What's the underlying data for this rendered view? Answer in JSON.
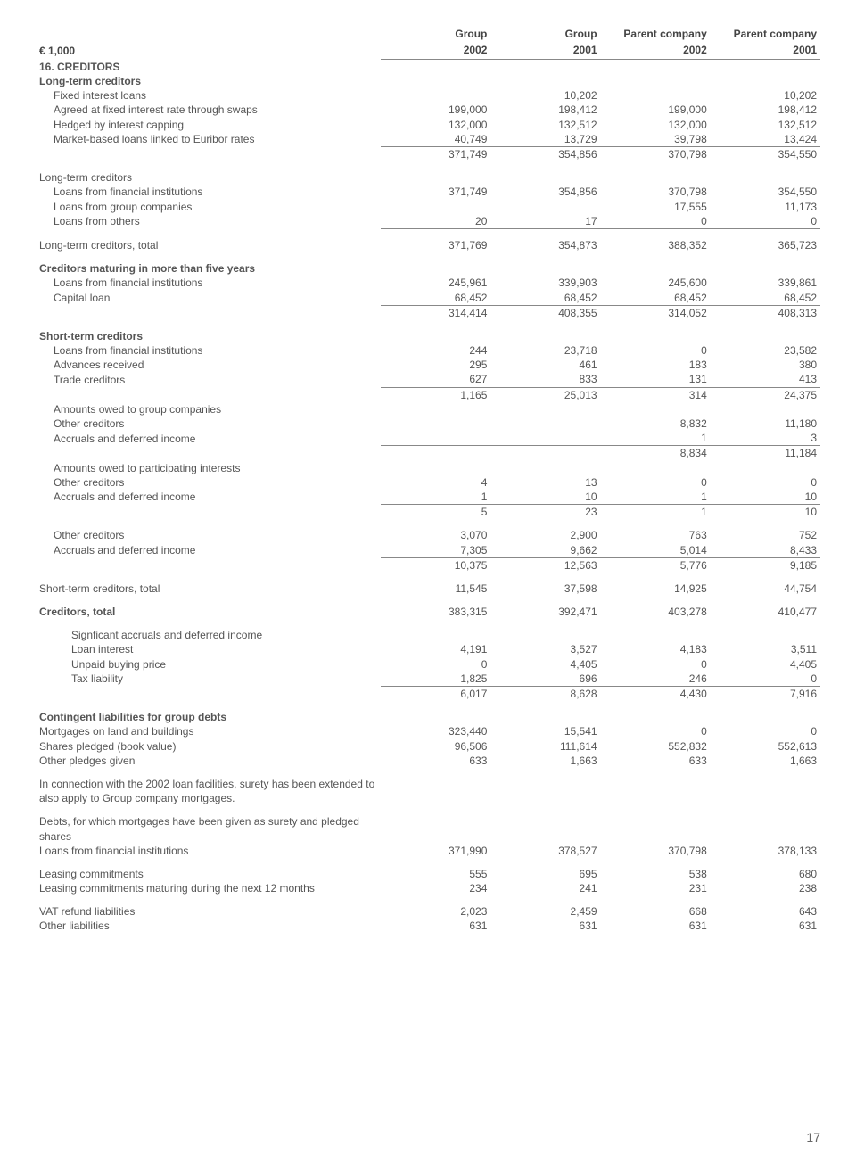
{
  "header": {
    "unit": "€ 1,000",
    "cols_top": [
      "Group",
      "Group",
      "Parent company",
      "Parent company"
    ],
    "cols_bot": [
      "2002",
      "2001",
      "2002",
      "2001"
    ]
  },
  "page_number": "17",
  "rows": [
    {
      "label": "16. CREDITORS",
      "bold": true
    },
    {
      "label": "Long-term creditors",
      "bold": true
    },
    {
      "label": "Fixed interest loans",
      "indent": 1,
      "v": [
        "",
        "10,202",
        "",
        "10,202"
      ]
    },
    {
      "label": "Agreed at fixed interest rate through swaps",
      "indent": 1,
      "v": [
        "199,000",
        "198,412",
        "199,000",
        "198,412"
      ]
    },
    {
      "label": "Hedged by interest capping",
      "indent": 1,
      "v": [
        "132,000",
        "132,512",
        "132,000",
        "132,512"
      ]
    },
    {
      "label": "Market-based loans linked to Euribor rates",
      "indent": 1,
      "uline": true,
      "v": [
        "40,749",
        "13,729",
        "39,798",
        "13,424"
      ]
    },
    {
      "label": "",
      "v": [
        "371,749",
        "354,856",
        "370,798",
        "354,550"
      ]
    },
    {
      "spacer": true
    },
    {
      "label": "Long-term creditors"
    },
    {
      "label": "Loans from financial institutions",
      "indent": 1,
      "v": [
        "371,749",
        "354,856",
        "370,798",
        "354,550"
      ]
    },
    {
      "label": "Loans from group companies",
      "indent": 1,
      "v": [
        "",
        "",
        "17,555",
        "11,173"
      ]
    },
    {
      "label": "Loans from others",
      "indent": 1,
      "uline": true,
      "v": [
        "20",
        "17",
        "0",
        "0"
      ]
    },
    {
      "spacer": true
    },
    {
      "label": "Long-term creditors, total",
      "v": [
        "371,769",
        "354,873",
        "388,352",
        "365,723"
      ]
    },
    {
      "spacer": true
    },
    {
      "label": "Creditors maturing in more than five years",
      "bold": true
    },
    {
      "label": "Loans from financial institutions",
      "indent": 1,
      "v": [
        "245,961",
        "339,903",
        "245,600",
        "339,861"
      ]
    },
    {
      "label": "Capital loan",
      "indent": 1,
      "uline": true,
      "v": [
        "68,452",
        "68,452",
        "68,452",
        "68,452"
      ]
    },
    {
      "label": "",
      "v": [
        "314,414",
        "408,355",
        "314,052",
        "408,313"
      ]
    },
    {
      "spacer": true
    },
    {
      "label": "Short-term creditors",
      "bold": true
    },
    {
      "label": "Loans from financial institutions",
      "indent": 1,
      "v": [
        "244",
        "23,718",
        "0",
        "23,582"
      ]
    },
    {
      "label": "Advances received",
      "indent": 1,
      "v": [
        "295",
        "461",
        "183",
        "380"
      ]
    },
    {
      "label": "Trade creditors",
      "indent": 1,
      "uline": true,
      "v": [
        "627",
        "833",
        "131",
        "413"
      ]
    },
    {
      "label": "",
      "v": [
        "1,165",
        "25,013",
        "314",
        "24,375"
      ]
    },
    {
      "label": "Amounts owed to group companies",
      "indent": 1
    },
    {
      "label": "Other creditors",
      "indent": 1,
      "v": [
        "",
        "",
        "8,832",
        "11,180"
      ]
    },
    {
      "label": "Accruals and deferred income",
      "indent": 1,
      "uline": true,
      "v": [
        "",
        "",
        "1",
        "3"
      ]
    },
    {
      "label": "",
      "v": [
        "",
        "",
        "8,834",
        "11,184"
      ]
    },
    {
      "label": "Amounts owed to participating interests",
      "indent": 1
    },
    {
      "label": "Other creditors",
      "indent": 1,
      "v": [
        "4",
        "13",
        "0",
        "0"
      ]
    },
    {
      "label": "Accruals and deferred income",
      "indent": 1,
      "uline": true,
      "v": [
        "1",
        "10",
        "1",
        "10"
      ]
    },
    {
      "label": "",
      "v": [
        "5",
        "23",
        "1",
        "10"
      ]
    },
    {
      "spacer": true
    },
    {
      "label": "Other creditors",
      "indent": 1,
      "v": [
        "3,070",
        "2,900",
        "763",
        "752"
      ]
    },
    {
      "label": "Accruals and deferred income",
      "indent": 1,
      "uline": true,
      "v": [
        "7,305",
        "9,662",
        "5,014",
        "8,433"
      ]
    },
    {
      "label": "",
      "v": [
        "10,375",
        "12,563",
        "5,776",
        "9,185"
      ]
    },
    {
      "spacer": true
    },
    {
      "label": "Short-term creditors, total",
      "v": [
        "11,545",
        "37,598",
        "14,925",
        "44,754"
      ]
    },
    {
      "spacer": true
    },
    {
      "label": "Creditors, total",
      "bold": true,
      "v": [
        "383,315",
        "392,471",
        "403,278",
        "410,477"
      ]
    },
    {
      "spacer": true
    },
    {
      "label": "Signficant accruals and deferred income",
      "indent": 2
    },
    {
      "label": "Loan interest",
      "indent": 2,
      "v": [
        "4,191",
        "3,527",
        "4,183",
        "3,511"
      ]
    },
    {
      "label": "Unpaid buying price",
      "indent": 2,
      "v": [
        "0",
        "4,405",
        "0",
        "4,405"
      ]
    },
    {
      "label": "Tax liability",
      "indent": 2,
      "uline": true,
      "v": [
        "1,825",
        "696",
        "246",
        "0"
      ]
    },
    {
      "label": "",
      "v": [
        "6,017",
        "8,628",
        "4,430",
        "7,916"
      ]
    },
    {
      "spacer": true
    },
    {
      "label": "Contingent liabilities for group debts",
      "bold": true
    },
    {
      "label": "Mortgages on land and buildings",
      "v": [
        "323,440",
        "15,541",
        "0",
        "0"
      ]
    },
    {
      "label": "Shares pledged (book value)",
      "v": [
        "96,506",
        "111,614",
        "552,832",
        "552,613"
      ]
    },
    {
      "label": "Other pledges given",
      "v": [
        "633",
        "1,663",
        "633",
        "1,663"
      ]
    },
    {
      "spacer": true
    },
    {
      "label": "In connection with the 2002 loan facilities, surety has been extended to also apply to Group company mortgages."
    },
    {
      "spacer": true
    },
    {
      "label": "Debts, for which mortgages have been given as surety and pledged shares"
    },
    {
      "label": "Loans from financial institutions",
      "v": [
        "371,990",
        "378,527",
        "370,798",
        "378,133"
      ]
    },
    {
      "spacer": true
    },
    {
      "label": "Leasing commitments",
      "v": [
        "555",
        "695",
        "538",
        "680"
      ]
    },
    {
      "label": "Leasing commitments maturing during the next 12 months",
      "v": [
        "234",
        "241",
        "231",
        "238"
      ]
    },
    {
      "spacer": true
    },
    {
      "label": "VAT refund liabilities",
      "v": [
        "2,023",
        "2,459",
        "668",
        "643"
      ]
    },
    {
      "label": "Other liabilities",
      "v": [
        "631",
        "631",
        "631",
        "631"
      ]
    }
  ]
}
